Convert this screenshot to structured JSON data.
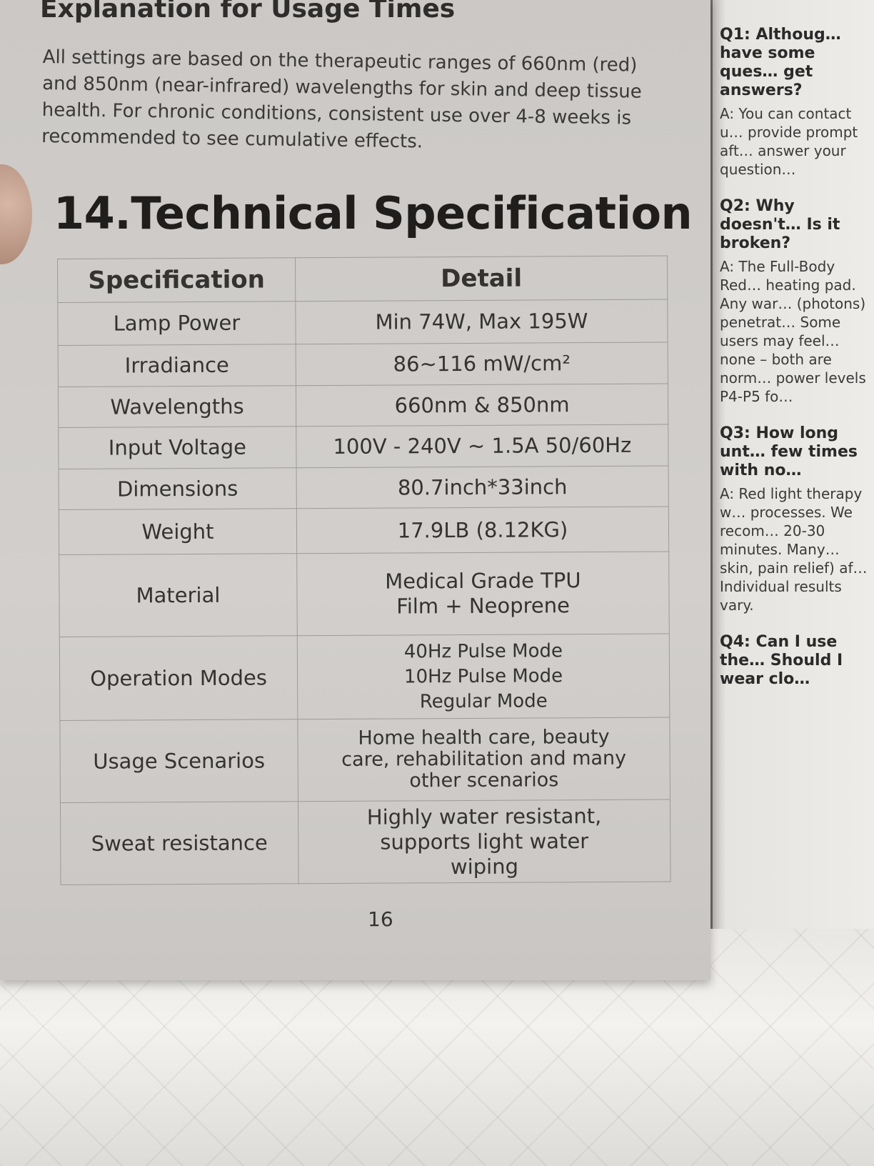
{
  "left_page": {
    "usage_heading": "Explanation for Usage Times",
    "usage_body": "All settings are based on the therapeutic ranges of 660nm (red) and 850nm (near-infrared) wavelengths for skin and deep tissue health. For chronic conditions, consistent use over 4-8 weeks is recommended to see cumulative effects.",
    "section_title": "14.Technical Specification",
    "table": {
      "headers": [
        "Specification",
        "Detail"
      ],
      "rows": [
        {
          "spec": "Lamp Power",
          "detail": "Min 74W, Max 195W"
        },
        {
          "spec": "Irradiance",
          "detail": "86~116 mW/cm²"
        },
        {
          "spec": "Wavelengths",
          "detail": "660nm & 850nm"
        },
        {
          "spec": "Input Voltage",
          "detail": "100V - 240V ~ 1.5A 50/60Hz"
        },
        {
          "spec": "Dimensions",
          "detail": "80.7inch*33inch"
        },
        {
          "spec": "Weight",
          "detail": "17.9LB (8.12KG)"
        },
        {
          "spec": "Material",
          "detail": "Medical Grade TPU Film + Neoprene"
        },
        {
          "spec": "Operation Modes",
          "detail": "40Hz Pulse Mode 10Hz Pulse Mode Regular Mode"
        },
        {
          "spec": "Usage Scenarios",
          "detail": "Home health care, beauty care, rehabilitation and many other scenarios"
        },
        {
          "spec": "Sweat resistance",
          "detail": "Highly water resistant, supports light water wiping"
        }
      ]
    },
    "page_number": "16"
  },
  "right_page": {
    "q1": "Q1: Althoug… have some ques… get answers?",
    "a1": "A: You can contact u… provide prompt aft… answer your question…",
    "q2": "Q2: Why doesn't… Is it broken?",
    "a2": "A: The Full-Body Red… heating pad. Any war… (photons) penetrat… Some users may feel… none – both are norm… power levels P4-P5 fo…",
    "q3": "Q3: How long unt… few times with no…",
    "a3": "A: Red light therapy w… processes. We recom… 20-30 minutes. Many… skin, pain relief) af… Individual results vary.",
    "q4": "Q4: Can I use the… Should I wear clo…"
  }
}
